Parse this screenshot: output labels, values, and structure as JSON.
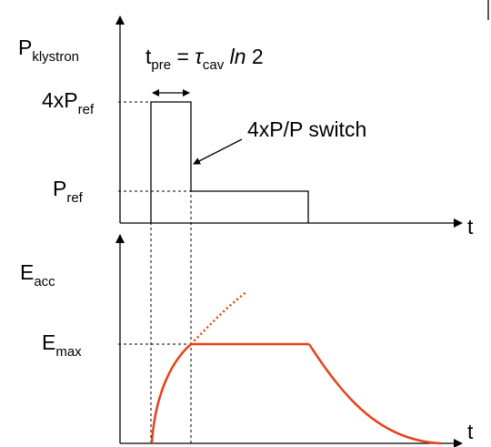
{
  "klystron_label": {
    "main": "P",
    "sub": "klystron"
  },
  "tpre_label": {
    "t": "t",
    "t_sub": "pre",
    "eq": " = ",
    "tau": "τ",
    "tau_sub": "cav",
    "ln": " ln",
    "two": " 2"
  },
  "power_high_label": {
    "main": "4xP",
    "sub": "ref"
  },
  "switch_label": "4xP/P switch",
  "power_ref_label": {
    "main": "P",
    "sub": "ref"
  },
  "top_axis_label": "t",
  "field_label": {
    "main": "E",
    "sub": "acc"
  },
  "field_max_label": {
    "main": "E",
    "sub": "max"
  },
  "bottom_axis_label": "t"
}
